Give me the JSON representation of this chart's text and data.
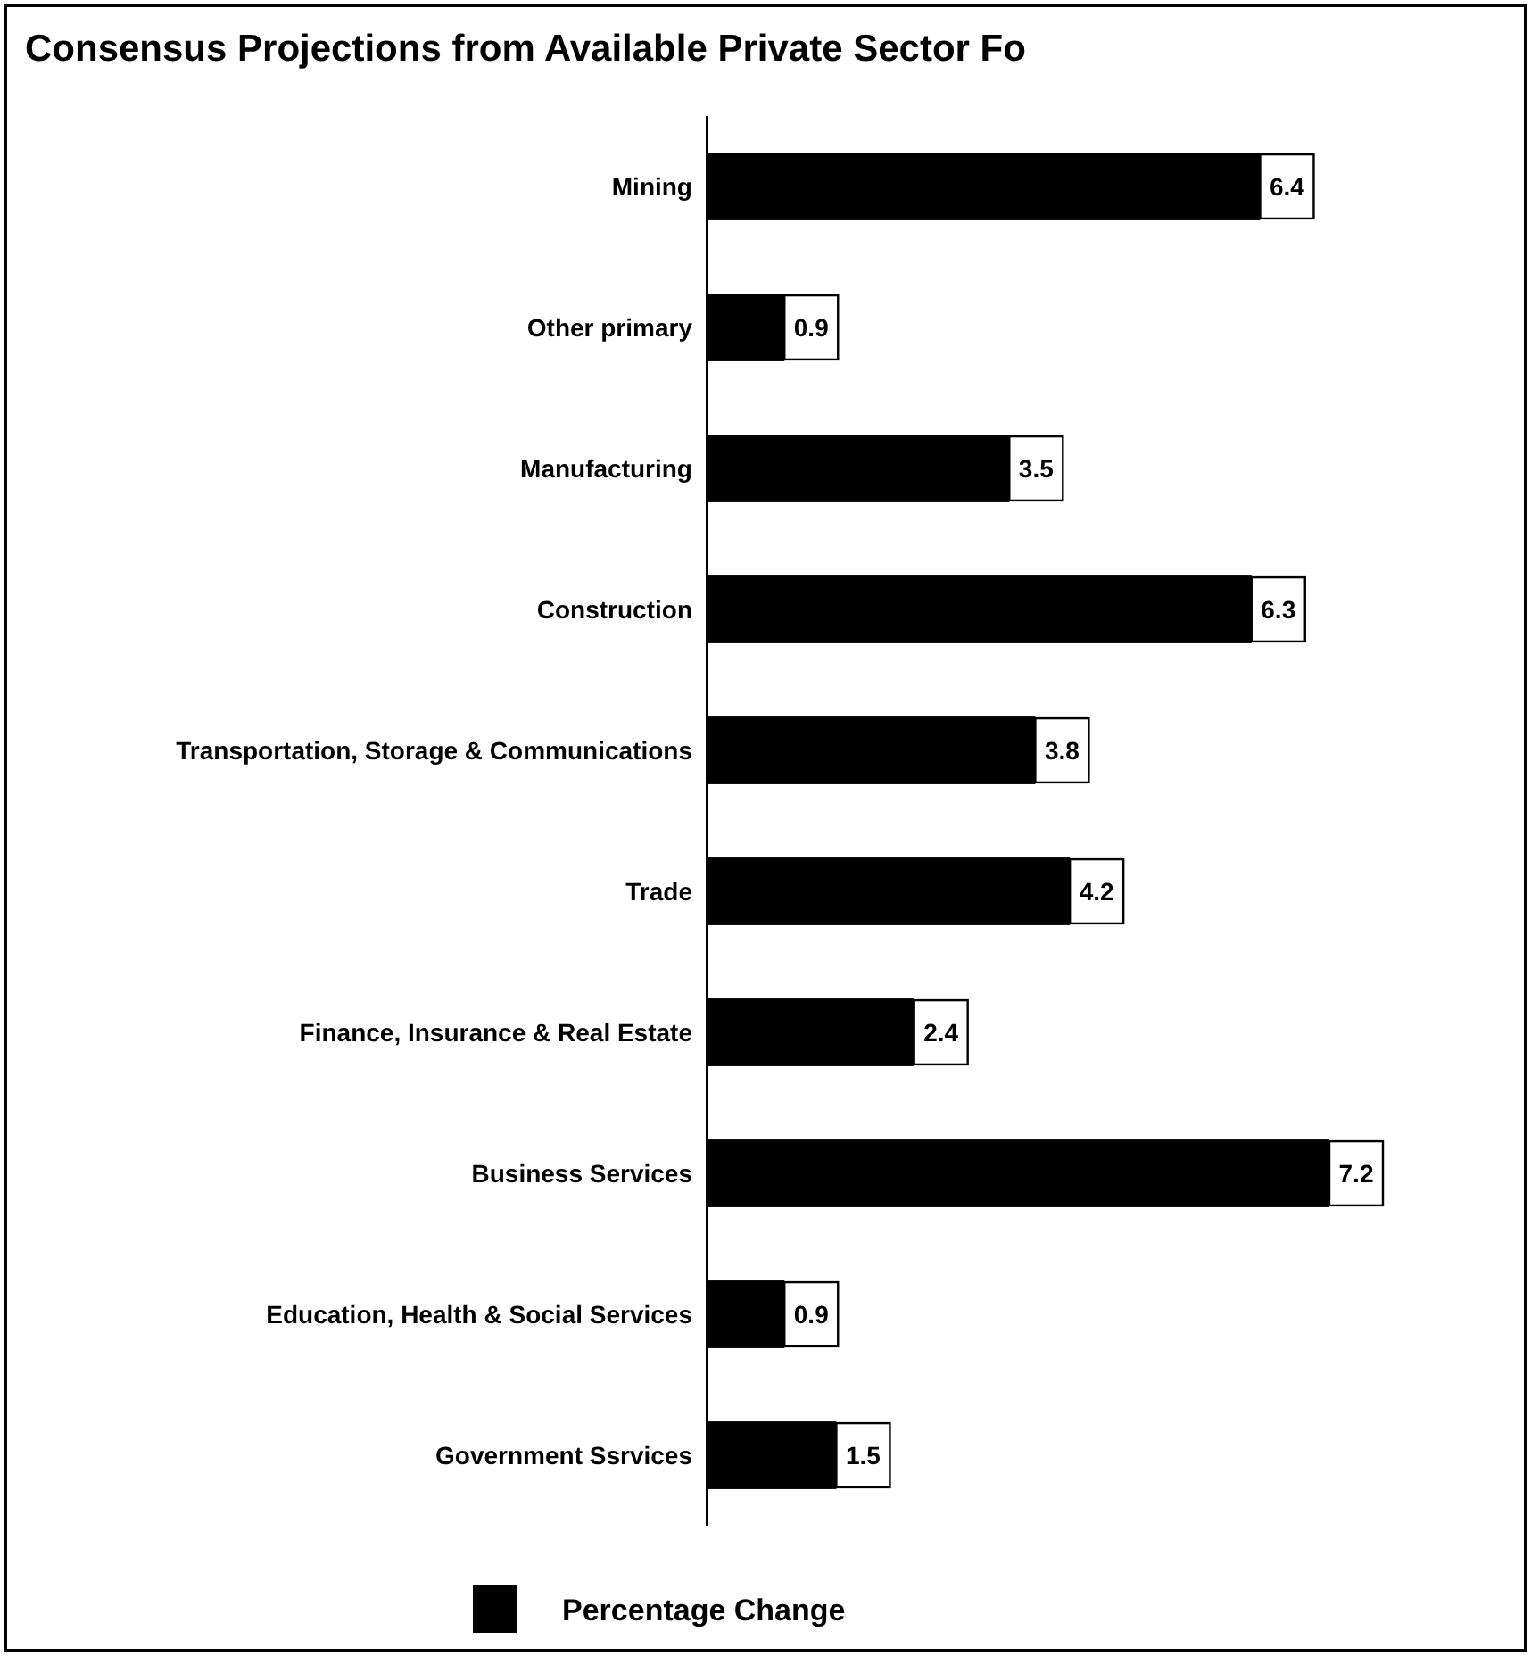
{
  "chart_data": {
    "type": "bar",
    "orientation": "horizontal",
    "title": "Consensus Projections from Available Private Sector Fo",
    "categories": [
      "Mining",
      "Other primary",
      "Manufacturing",
      "Construction",
      "Transportation, Storage & Communications",
      "Trade",
      "Finance, Insurance & Real Estate",
      "Business Services",
      "Education, Health & Social Services",
      "Government Ssrvices"
    ],
    "series": [
      {
        "name": "Percentage Change",
        "color": "#000000",
        "values": [
          6.4,
          0.9,
          3.5,
          6.3,
          3.8,
          4.2,
          2.4,
          7.2,
          0.9,
          1.5
        ]
      }
    ],
    "data_labels": true,
    "legend": "bottom",
    "grid": false
  }
}
